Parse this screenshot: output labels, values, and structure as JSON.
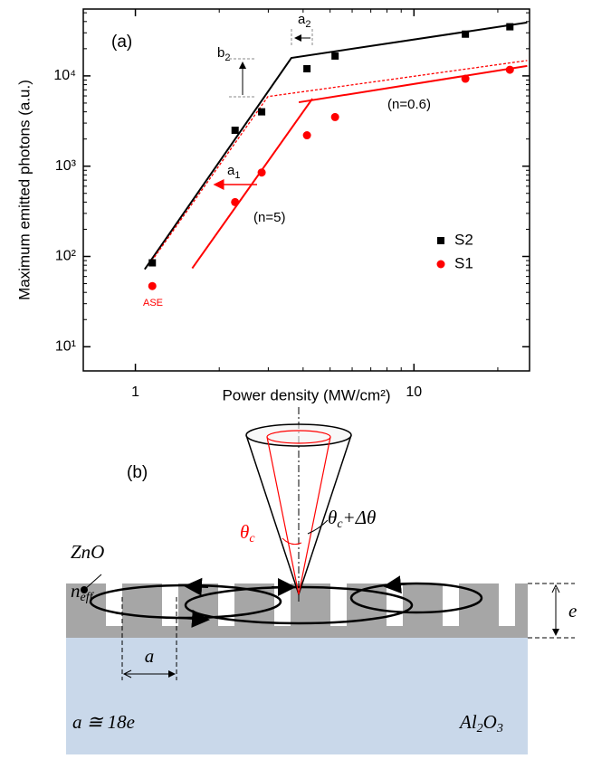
{
  "chart_data": {
    "type": "scatter",
    "panel": "(a)",
    "xlabel": "Power density (MW/cm²)",
    "ylabel": "Maximum emitted photons (a.u.)",
    "xscale": "log",
    "yscale": "log",
    "xlim": [
      0.65,
      26
    ],
    "ylim": [
      5.4,
      55000
    ],
    "xticks": [
      1,
      10
    ],
    "yticks": [
      {
        "value": 10,
        "label": "10¹"
      },
      {
        "value": 100,
        "label": "10²"
      },
      {
        "value": 1000,
        "label": "10³"
      },
      {
        "value": 10000,
        "label": "10⁴"
      }
    ],
    "legend": "right",
    "series": [
      {
        "name": "S2",
        "color": "#000000",
        "marker": "square",
        "x": [
          1.15,
          2.28,
          2.84,
          4.13,
          5.21,
          15.3,
          22.1
        ],
        "values": [
          85,
          2500,
          4000,
          12000,
          16600,
          29000,
          35000
        ]
      },
      {
        "name": "S1",
        "color": "#ff0000",
        "marker": "circle",
        "x": [
          1.15,
          2.28,
          2.84,
          4.13,
          5.21,
          15.3,
          22.1
        ],
        "values": [
          47,
          400,
          850,
          2200,
          3500,
          9300,
          11700
        ]
      }
    ],
    "fits": [
      {
        "color": "#000000",
        "dash": false,
        "x": [
          1.08,
          3.63,
          25.5
        ],
        "values": [
          72,
          15800,
          39000
        ]
      },
      {
        "color": "#ff0000",
        "dash": true,
        "x": [
          1.12,
          2.99,
          25.5
        ],
        "values": [
          81,
          5900,
          14800
        ]
      },
      {
        "color": "#ff0000",
        "dash": false,
        "x": [
          1.6,
          4.32
        ],
        "values": [
          74,
          5600
        ]
      },
      {
        "color": "#ff0000",
        "dash": false,
        "x": [
          3.86,
          25.5
        ],
        "values": [
          5100,
          12900
        ]
      }
    ],
    "annotations": [
      "a",
      "2",
      "b",
      "2",
      "a",
      "1",
      "(n=5)",
      "(n=0.6)",
      "ASE"
    ]
  },
  "panel_b": {
    "label": "(b)",
    "theta_c": [
      "θ",
      "c"
    ],
    "theta_c_delta": [
      "θ",
      "c",
      "+Δθ"
    ],
    "material": "ZnO",
    "n_eff": [
      "n",
      "eff"
    ],
    "thickness": "e",
    "period": "a",
    "relation": "a ≅ 18e",
    "substrate": [
      "Al",
      "2",
      "O",
      "3"
    ]
  }
}
